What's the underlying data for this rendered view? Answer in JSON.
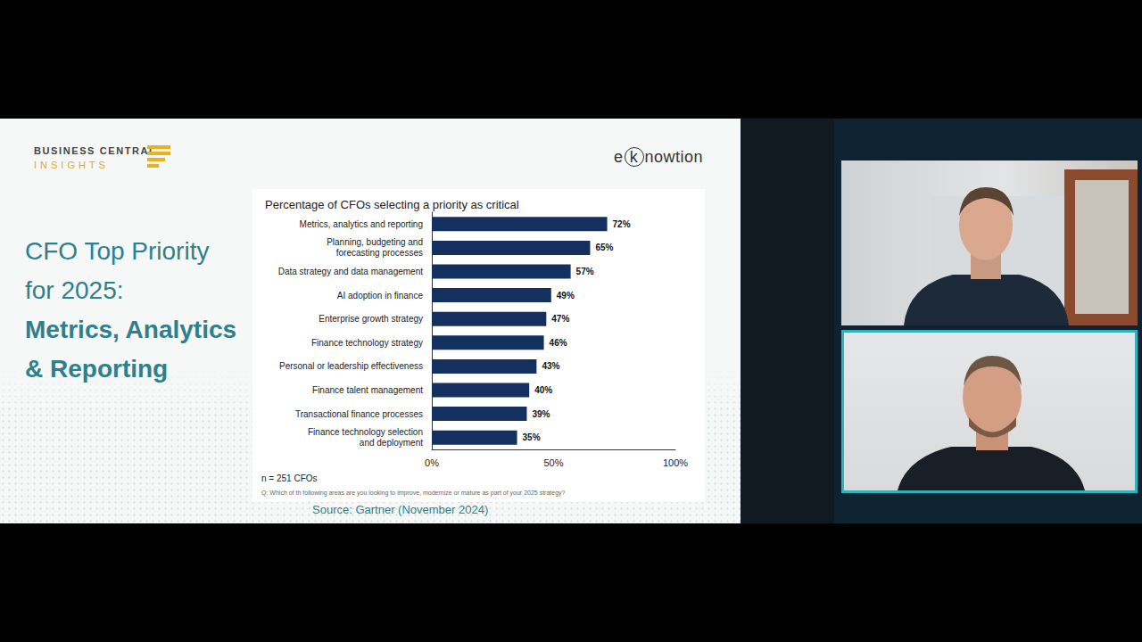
{
  "chart_data": {
    "type": "bar",
    "orientation": "horizontal",
    "title": "Percentage of CFOs selecting a priority as critical",
    "categories": [
      "Metrics, analytics and reporting",
      "Planning, budgeting and forecasting processes",
      "Data strategy and data management",
      "AI adoption in finance",
      "Enterprise growth strategy",
      "Finance technology strategy",
      "Personal or leadership effectiveness",
      "Finance talent management",
      "Transactional finance processes",
      "Finance technology selection and deployment"
    ],
    "values": [
      72,
      65,
      57,
      49,
      47,
      46,
      43,
      40,
      39,
      35
    ],
    "value_labels": [
      "72%",
      "65%",
      "57%",
      "49%",
      "47%",
      "46%",
      "43%",
      "40%",
      "39%",
      "35%"
    ],
    "color": "#14305e",
    "xlim": [
      0,
      100
    ],
    "xticks": [
      {
        "value": 0,
        "label": "0%"
      },
      {
        "value": 50,
        "label": "50%"
      },
      {
        "value": 100,
        "label": "100%"
      }
    ],
    "grid": false,
    "data_labels": true,
    "annotations": [
      "n = 251 CFOs",
      "Q: Which of th following areas are you looking to improve, modernize or mature as part of your 2025 strategy?"
    ]
  },
  "slide": {
    "brand": [
      "BUSINESS CENTRAL",
      "INSIGHTS"
    ],
    "logo": "eknowtion",
    "heading": "CFO Top Priority for 2025:",
    "heading_emphasis": "Metrics, Analytics & Reporting",
    "source": "Source: Gartner (November 2024)"
  }
}
